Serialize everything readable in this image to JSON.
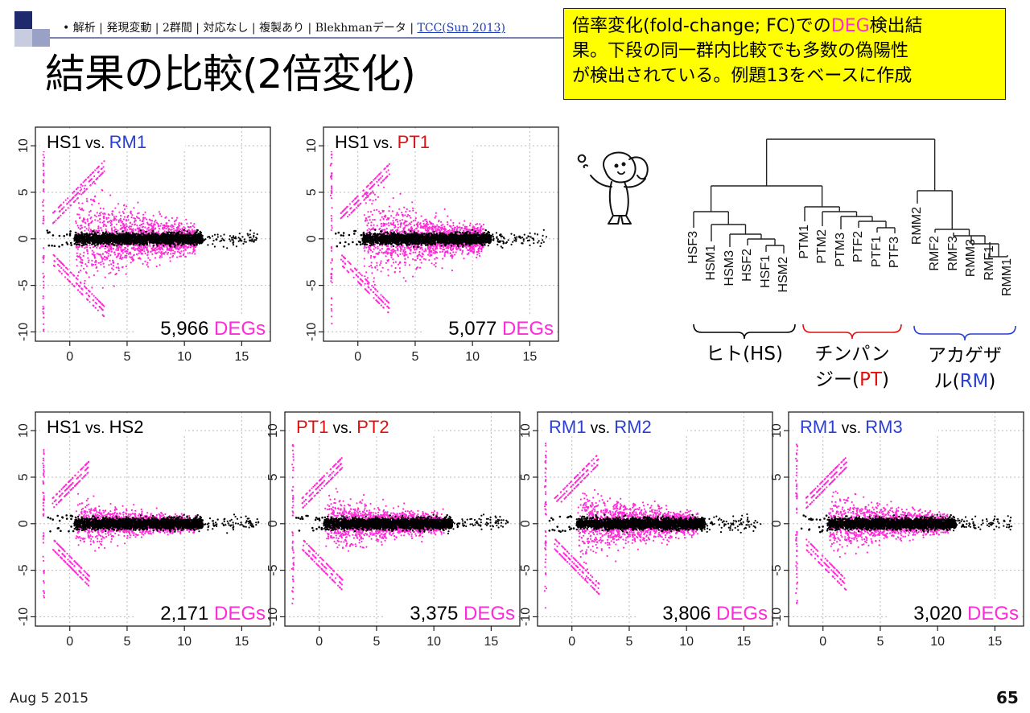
{
  "header": {
    "breadcrumb": "• 解析 | 発現変動 | 2群間 | 対応なし | 複製あり | Blekhmanデータ | ",
    "breadcrumb_link": "TCC(Sun 2013)",
    "title": "結果の比較(2倍変化)"
  },
  "note": {
    "line1_pre": "倍率変化(fold-change; FC)での",
    "line1_deg": "DEG",
    "line1_post": "検出結",
    "line2": "果。下段の同一群内比較でも多数の偽陽性",
    "line3": "が検出されている。例題13をベースに作成"
  },
  "colors": {
    "deg": "#ff2bd6",
    "nondeg": "#000000",
    "human": "#000000",
    "chimp": "#e01010",
    "macaque": "#2a3fd0"
  },
  "chart_data": [
    {
      "type": "scatter",
      "panel": "HS1 vs. RM1",
      "label_left": "HS1",
      "label_vs": "vs.",
      "label_right": "RM1",
      "left_color": "#000000",
      "right_color": "#2a3fd0",
      "deg_count": "5,966",
      "deg_word": "DEGs",
      "spread": 1.15,
      "xlim": [
        -3,
        17.5
      ],
      "ylim": [
        -11,
        12
      ],
      "xticks": [
        0,
        5,
        10,
        15
      ],
      "yticks": [
        -10,
        -5,
        0,
        5,
        10
      ],
      "legend_position": "bottom-right",
      "grid": true
    },
    {
      "type": "scatter",
      "panel": "HS1 vs. PT1",
      "label_left": "HS1",
      "label_vs": "vs.",
      "label_right": "PT1",
      "left_color": "#000000",
      "right_color": "#e01010",
      "deg_count": "5,077",
      "deg_word": "DEGs",
      "spread": 1.05,
      "xlim": [
        -3,
        17.5
      ],
      "ylim": [
        -11,
        12
      ],
      "xticks": [
        0,
        5,
        10,
        15
      ],
      "yticks": [
        -10,
        -5,
        0,
        5,
        10
      ],
      "legend_position": "bottom-right",
      "grid": true
    },
    {
      "type": "scatter",
      "panel": "HS1 vs. HS2",
      "label_left": "HS1",
      "label_vs": "vs.",
      "label_right": "HS2",
      "left_color": "#000000",
      "right_color": "#000000",
      "deg_count": "2,171",
      "deg_word": "DEGs",
      "spread": 0.55,
      "xlim": [
        -3,
        17.5
      ],
      "ylim": [
        -11,
        12
      ],
      "xticks": [
        0,
        5,
        10,
        15
      ],
      "yticks": [
        -10,
        -5,
        0,
        5,
        10
      ],
      "legend_position": "bottom-right",
      "grid": true
    },
    {
      "type": "scatter",
      "panel": "PT1 vs. PT2",
      "label_left": "PT1",
      "label_vs": "vs.",
      "label_right": "PT2",
      "left_color": "#e01010",
      "right_color": "#e01010",
      "deg_count": "3,375",
      "deg_word": "DEGs",
      "spread": 0.7,
      "xlim": [
        -3,
        17.5
      ],
      "ylim": [
        -11,
        12
      ],
      "xticks": [
        0,
        5,
        10,
        15
      ],
      "yticks": [
        -10,
        -5,
        0,
        5,
        10
      ],
      "legend_position": "bottom-right",
      "grid": true
    },
    {
      "type": "scatter",
      "panel": "RM1 vs. RM2",
      "label_left": "RM1",
      "label_vs": "vs.",
      "label_right": "RM2",
      "left_color": "#2a3fd0",
      "right_color": "#2a3fd0",
      "deg_count": "3,806",
      "deg_word": "DEGs",
      "spread": 0.85,
      "xlim": [
        -3,
        17.5
      ],
      "ylim": [
        -11,
        12
      ],
      "xticks": [
        0,
        5,
        10,
        15
      ],
      "yticks": [
        -10,
        -5,
        0,
        5,
        10
      ],
      "legend_position": "bottom-right",
      "grid": true
    },
    {
      "type": "scatter",
      "panel": "RM1 vs. RM3",
      "label_left": "RM1",
      "label_vs": "vs.",
      "label_right": "RM3",
      "left_color": "#2a3fd0",
      "right_color": "#2a3fd0",
      "deg_count": "3,020",
      "deg_word": "DEGs",
      "spread": 0.7,
      "xlim": [
        -3,
        17.5
      ],
      "ylim": [
        -11,
        12
      ],
      "xticks": [
        0,
        5,
        10,
        15
      ],
      "yticks": [
        -10,
        -5,
        0,
        5,
        10
      ],
      "legend_position": "bottom-right",
      "grid": true
    }
  ],
  "dendrogram": {
    "leaves": [
      "HSF3",
      "HSM1",
      "HSM3",
      "HSF2",
      "HSF1",
      "HSM2",
      "PTM1",
      "PTM2",
      "PTM3",
      "PTF2",
      "PTF1",
      "PTF3",
      "RMM2",
      "RMF2",
      "RMF3",
      "RMM3",
      "RMF1",
      "RMM1"
    ],
    "groups": [
      {
        "line1": "ヒト(HS)",
        "line2": "",
        "code": "",
        "color": "#000000"
      },
      {
        "line1": "チンパン",
        "line2": "ジー(",
        "code": "PT",
        "close": ")",
        "color": "#e01010"
      },
      {
        "line1": "アカゲザ",
        "line2": "ル(",
        "code": "RM",
        "close": ")",
        "color": "#2a3fd0"
      }
    ]
  },
  "footer": {
    "date": "Aug 5 2015",
    "page": "65"
  }
}
